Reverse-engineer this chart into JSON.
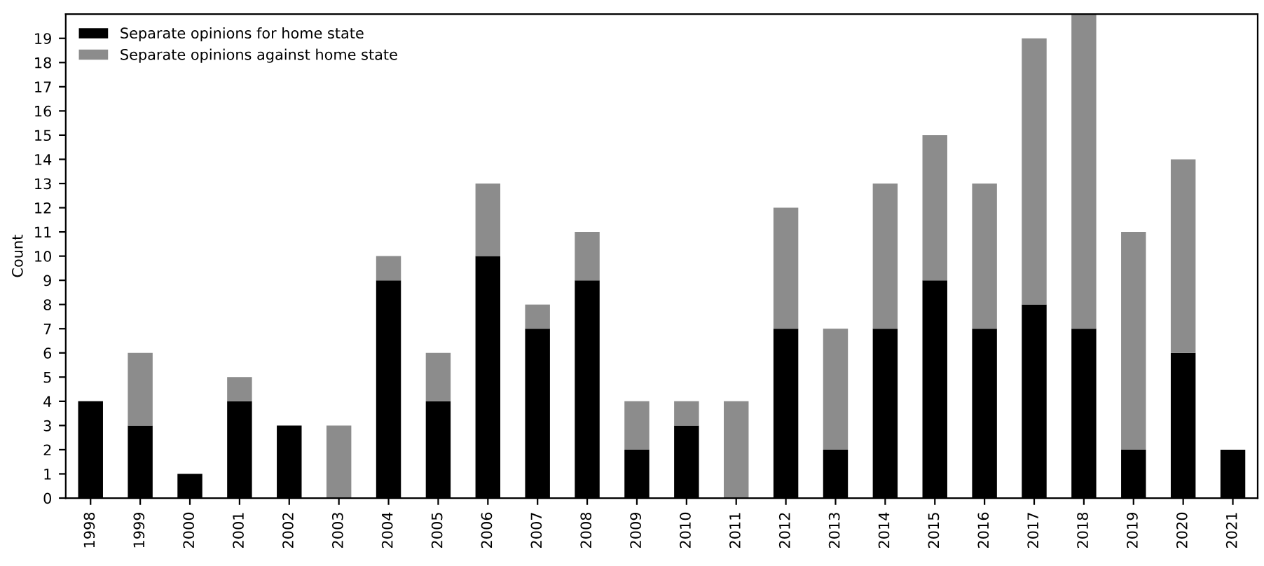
{
  "chart_data": {
    "type": "bar",
    "stacked": true,
    "ylabel": "Count",
    "categories": [
      "1998",
      "1999",
      "2000",
      "2001",
      "2002",
      "2003",
      "2004",
      "2005",
      "2006",
      "2007",
      "2008",
      "2009",
      "2010",
      "2011",
      "2012",
      "2013",
      "2014",
      "2015",
      "2016",
      "2017",
      "2018",
      "2019",
      "2020",
      "2021"
    ],
    "series": [
      {
        "name": "Separate opinions for home state",
        "color": "#000000",
        "values": [
          4,
          3,
          1,
          4,
          3,
          0,
          9,
          4,
          10,
          7,
          9,
          2,
          3,
          0,
          7,
          2,
          7,
          9,
          7,
          8,
          7,
          2,
          6,
          2
        ]
      },
      {
        "name": "Separate opinions against home state",
        "color": "#8c8c8c",
        "values": [
          0,
          3,
          0,
          1,
          0,
          3,
          1,
          2,
          3,
          1,
          2,
          2,
          1,
          4,
          5,
          5,
          6,
          6,
          6,
          11,
          13,
          9,
          8,
          0
        ]
      }
    ],
    "ylim": [
      0,
      20
    ],
    "yticks": [
      0,
      1,
      2,
      3,
      4,
      5,
      6,
      7,
      8,
      9,
      10,
      11,
      12,
      13,
      14,
      15,
      16,
      17,
      18,
      19
    ],
    "legend": "top left",
    "grid": false
  }
}
